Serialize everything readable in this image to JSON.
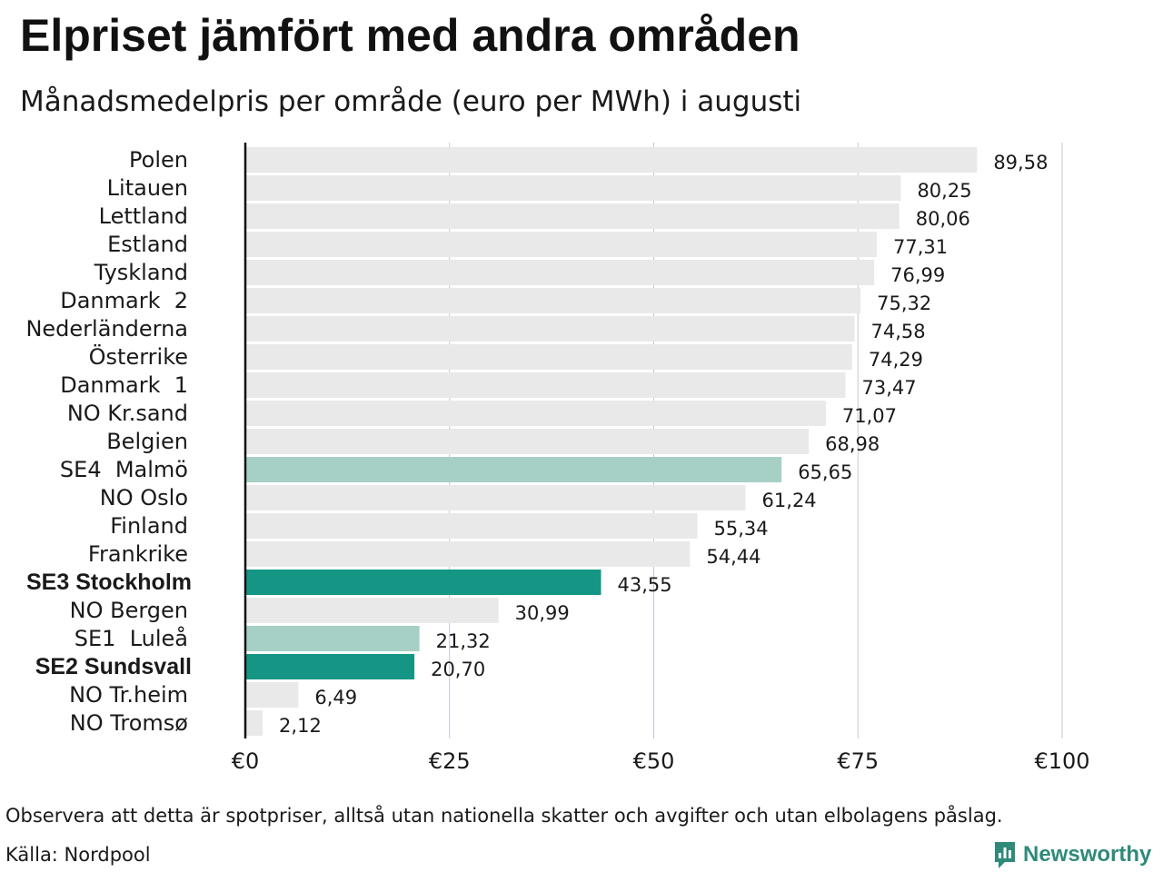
{
  "title": "Elpriset jämfört med andra områden",
  "subtitle": "Månadsmedelpris per område (euro per MWh) i augusti",
  "note": "Observera att detta är spotpriser, alltså utan nationella skatter och avgifter och utan elbolagens påslag.",
  "source": "Källa: Nordpool",
  "brand": {
    "name": "Newsworthy",
    "logo_icon": "newsworthy-logo-icon"
  },
  "colors": {
    "bar_default": "#e9e9e9",
    "bar_highlight": "#159685",
    "bar_light_highlight": "#a6d0c6",
    "axis": "#111111",
    "grid": "#c4c7d6",
    "brand": "#2f8a7a"
  },
  "chart_data": {
    "type": "bar",
    "orientation": "horizontal",
    "xlim": [
      0,
      100
    ],
    "xticks": [
      0,
      25,
      50,
      75,
      100
    ],
    "xtick_labels": [
      "€0",
      "€25",
      "€50",
      "€75",
      "€100"
    ],
    "grid": true,
    "categories": [
      "Polen",
      "Litauen",
      "Lettland",
      "Estland",
      "Tyskland",
      "Danmark  2",
      "Nederländerna",
      "Österrike",
      "Danmark  1",
      "NO Kr.sand",
      "Belgien",
      "SE4  Malmö",
      "NO Oslo",
      "Finland",
      "Frankrike",
      "SE3 Stockholm",
      "NO Bergen",
      "SE1  Luleå",
      "SE2 Sundsvall",
      "NO Tr.heim",
      "NO Tromsø"
    ],
    "values": [
      89.58,
      80.25,
      80.06,
      77.31,
      76.99,
      75.32,
      74.58,
      74.29,
      73.47,
      71.07,
      68.98,
      65.65,
      61.24,
      55.34,
      54.44,
      43.55,
      30.99,
      21.32,
      20.7,
      6.49,
      2.12
    ],
    "value_labels": [
      "89,58",
      "80,25",
      "80,06",
      "77,31",
      "76,99",
      "75,32",
      "74,58",
      "74,29",
      "73,47",
      "71,07",
      "68,98",
      "65,65",
      "61,24",
      "55,34",
      "54,44",
      "43,55",
      "30,99",
      "21,32",
      "20,70",
      "6,49",
      "2,12"
    ],
    "highlight": [
      "none",
      "none",
      "none",
      "none",
      "none",
      "none",
      "none",
      "none",
      "none",
      "none",
      "none",
      "light",
      "none",
      "none",
      "none",
      "strong",
      "none",
      "light",
      "strong",
      "none",
      "none"
    ]
  }
}
